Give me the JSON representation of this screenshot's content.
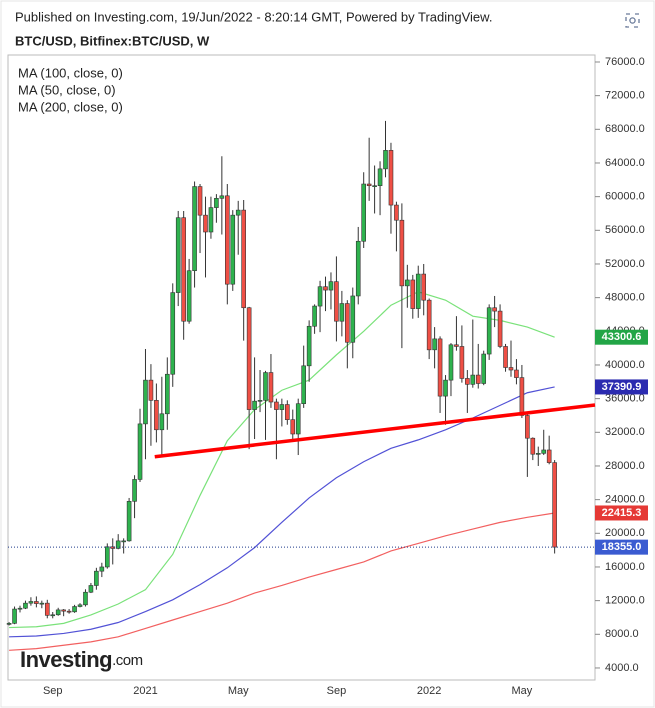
{
  "chart_data": {
    "type": "candlestick",
    "header": "Published on Investing.com, 19/Jun/2022 - 8:20:14 GMT, Powered by TradingView.",
    "title": "BTC/USD, Bitfinex:BTC/USD, W",
    "logo": "Investing",
    "logo_suffix": ".com",
    "categories": [
      null,
      null,
      null,
      null,
      null,
      null,
      null,
      null,
      "Sep",
      null,
      null,
      null,
      null,
      null,
      null,
      null,
      null,
      null,
      null,
      null,
      null,
      null,
      null,
      null,
      null,
      "2021",
      null,
      null,
      null,
      null,
      null,
      null,
      null,
      null,
      null,
      null,
      null,
      null,
      null,
      null,
      null,
      null,
      "May",
      null,
      null,
      null,
      null,
      null,
      null,
      null,
      null,
      null,
      null,
      null,
      null,
      null,
      null,
      null,
      null,
      null,
      "Sep",
      null,
      null,
      null,
      null,
      null,
      null,
      null,
      null,
      null,
      null,
      null,
      null,
      null,
      null,
      null,
      null,
      "2022",
      null,
      null,
      null,
      null,
      null,
      null,
      null,
      null,
      null,
      null,
      null,
      null,
      null,
      null,
      null,
      null,
      "May",
      null,
      null,
      null,
      null,
      null,
      null
    ],
    "candles": {
      "up_color": "#2eb24e",
      "down_color": "#ef4f45",
      "open": [
        9200,
        9300,
        11000,
        11100,
        11700,
        11900,
        11650,
        11700,
        10250,
        10320,
        10900,
        10750,
        10670,
        11300,
        11500,
        13000,
        13800,
        15500,
        16000,
        18400,
        18200,
        19100,
        19100,
        23800,
        26400,
        33000,
        38200,
        35800,
        32300,
        34200,
        38900,
        48600,
        57500,
        45200,
        51200,
        61200,
        57800,
        55800,
        58700,
        59800,
        60100,
        49600,
        57800,
        58400,
        46800,
        34700,
        35700,
        35800,
        39100,
        35600,
        34700,
        35300,
        33500,
        31800,
        35400,
        39900,
        44600,
        47000,
        49300,
        48900,
        49900,
        45200,
        47300,
        42700,
        48200,
        54700,
        61500,
        61300,
        61300,
        63300,
        65500,
        59000,
        57200,
        49400,
        50100,
        46700,
        50800,
        47700,
        41800,
        43100,
        36300,
        38200,
        42400,
        42200,
        38400,
        37700,
        38800,
        37800,
        41300,
        46800,
        46400,
        42200,
        39700,
        39400,
        38500,
        34000,
        31300,
        29400,
        29500,
        29900,
        28400
      ],
      "high": [
        9450,
        11300,
        11400,
        12000,
        12400,
        12500,
        12000,
        12100,
        10650,
        11150,
        11000,
        11000,
        11500,
        11700,
        13350,
        14100,
        15900,
        16500,
        18800,
        19400,
        19900,
        19400,
        24200,
        26900,
        34800,
        41900,
        40100,
        37800,
        38600,
        40900,
        49700,
        58300,
        58300,
        52600,
        61800,
        61500,
        60000,
        60000,
        60300,
        64800,
        61500,
        58400,
        59500,
        59600,
        46900,
        40900,
        39400,
        39300,
        41300,
        36000,
        36000,
        35800,
        34700,
        36000,
        42300,
        45300,
        47200,
        50000,
        50500,
        51000,
        52900,
        48800,
        47700,
        49200,
        56400,
        62900,
        67000,
        63700,
        64200,
        69000,
        66400,
        59400,
        59200,
        51900,
        50700,
        51800,
        52000,
        47900,
        44500,
        43400,
        38800,
        42600,
        45800,
        44700,
        39400,
        45400,
        42500,
        41700,
        47200,
        48200,
        47200,
        42500,
        42900,
        40700,
        40000,
        34300,
        31400,
        30300,
        32300,
        31600,
        28700
      ],
      "low": [
        9050,
        9200,
        10600,
        11000,
        11400,
        11200,
        11100,
        9900,
        9900,
        10200,
        10150,
        10450,
        10550,
        11200,
        11300,
        12900,
        13300,
        14800,
        15800,
        16300,
        18100,
        17600,
        19000,
        21800,
        26100,
        28800,
        30400,
        30800,
        29200,
        32300,
        37400,
        47000,
        43000,
        44900,
        49200,
        53300,
        50400,
        55000,
        56900,
        55500,
        47200,
        48800,
        53100,
        42900,
        30000,
        31200,
        34400,
        31100,
        34900,
        28800,
        32700,
        32900,
        31100,
        29300,
        34900,
        38000,
        43700,
        43900,
        46400,
        46600,
        42800,
        43400,
        39600,
        40800,
        47200,
        53900,
        59500,
        58000,
        57800,
        62300,
        55600,
        53500,
        42000,
        46800,
        45500,
        45600,
        45900,
        40700,
        39600,
        34300,
        32900,
        36300,
        41700,
        37900,
        34300,
        37300,
        37200,
        37600,
        40600,
        44500,
        42000,
        39200,
        38600,
        37700,
        33700,
        26700,
        28700,
        28000,
        29300,
        28200,
        17600
      ],
      "close": [
        9300,
        11000,
        11100,
        11700,
        11900,
        11650,
        11700,
        10250,
        10320,
        10900,
        10750,
        10670,
        11300,
        11500,
        13000,
        13800,
        15500,
        16000,
        18400,
        18200,
        19100,
        19100,
        23800,
        26400,
        33000,
        38200,
        35800,
        32300,
        34200,
        38900,
        48600,
        57500,
        45200,
        51200,
        61200,
        57800,
        55800,
        58700,
        59800,
        60100,
        49600,
        57800,
        58400,
        46800,
        34700,
        35700,
        35800,
        39100,
        35600,
        34700,
        35300,
        33500,
        31800,
        35400,
        39900,
        44600,
        47000,
        49300,
        48900,
        49900,
        45200,
        47300,
        42700,
        48200,
        54700,
        61500,
        61300,
        61300,
        63300,
        65500,
        59000,
        57200,
        49400,
        50100,
        46700,
        50800,
        47700,
        41800,
        43100,
        36300,
        38200,
        42400,
        42200,
        38400,
        37700,
        38800,
        37800,
        41300,
        46800,
        46400,
        42200,
        39700,
        39400,
        38500,
        34000,
        31300,
        29400,
        29500,
        29900,
        28400,
        18355
      ]
    },
    "last_price": {
      "value": 18355,
      "label": "18355.0",
      "color": "#3a5bd1"
    },
    "series": [
      {
        "name": "MA (100, close, 0)",
        "color": "#5252d6",
        "tag_color": "#2b2bb0",
        "x": [
          0,
          5,
          10,
          15,
          20,
          25,
          30,
          35,
          40,
          45,
          50,
          55,
          60,
          65,
          70,
          75,
          80,
          85,
          90,
          95,
          100
        ],
        "values": [
          7700,
          7800,
          8100,
          8600,
          9400,
          10700,
          12100,
          13900,
          15900,
          18300,
          21300,
          24200,
          26600,
          28500,
          30100,
          31100,
          32300,
          33700,
          35200,
          36700,
          37390.9
        ]
      },
      {
        "name": "MA (50, close, 0)",
        "color": "#7ae27a",
        "tag_color": "#22a546",
        "x": [
          0,
          5,
          10,
          15,
          20,
          25,
          30,
          35,
          40,
          45,
          50,
          55,
          60,
          65,
          70,
          75,
          80,
          85,
          90,
          95,
          100
        ],
        "values": [
          8800,
          8900,
          9300,
          10300,
          11600,
          13300,
          17500,
          24500,
          31000,
          34700,
          37000,
          38200,
          41200,
          44000,
          47100,
          48700,
          47700,
          45800,
          45300,
          44500,
          43300.6
        ]
      },
      {
        "name": "MA (200, close, 0)",
        "color": "#f26060",
        "tag_color": "#e53935",
        "x": [
          0,
          5,
          10,
          15,
          20,
          25,
          30,
          35,
          40,
          45,
          50,
          55,
          60,
          65,
          70,
          75,
          80,
          85,
          90,
          95,
          100
        ],
        "values": [
          6100,
          6300,
          6700,
          7100,
          7700,
          8700,
          9700,
          10700,
          11700,
          12900,
          13800,
          14800,
          15700,
          16600,
          17900,
          18800,
          19700,
          20500,
          21300,
          21900,
          22415.3
        ]
      }
    ],
    "trendline": {
      "x": [
        26.7,
        107.4
      ],
      "values": [
        29100,
        35250
      ],
      "color": "#ff0000"
    },
    "xlim": [
      -0.2,
      107.4
    ],
    "ylim": [
      2570,
      76830
    ],
    "yticks": [
      {
        "value": 4000,
        "label": "4000.0"
      },
      {
        "value": 8000,
        "label": "8000.0"
      },
      {
        "value": 12000,
        "label": "12000.0"
      },
      {
        "value": 16000,
        "label": "16000.0"
      },
      {
        "value": 20000,
        "label": "20000.0"
      },
      {
        "value": 24000,
        "label": "24000.0"
      },
      {
        "value": 28000,
        "label": "28000.0"
      },
      {
        "value": 32000,
        "label": "32000.0"
      },
      {
        "value": 36000,
        "label": "36000.0"
      },
      {
        "value": 40000,
        "label": "40000.0"
      },
      {
        "value": 44000,
        "label": "44000.0"
      },
      {
        "value": 48000,
        "label": "48000.0"
      },
      {
        "value": 52000,
        "label": "52000.0"
      },
      {
        "value": 56000,
        "label": "56000.0"
      },
      {
        "value": 60000,
        "label": "60000.0"
      },
      {
        "value": 64000,
        "label": "64000.0"
      },
      {
        "value": 68000,
        "label": "68000.0"
      },
      {
        "value": 72000,
        "label": "72000.0"
      },
      {
        "value": 76000,
        "label": "76000.0"
      }
    ]
  }
}
